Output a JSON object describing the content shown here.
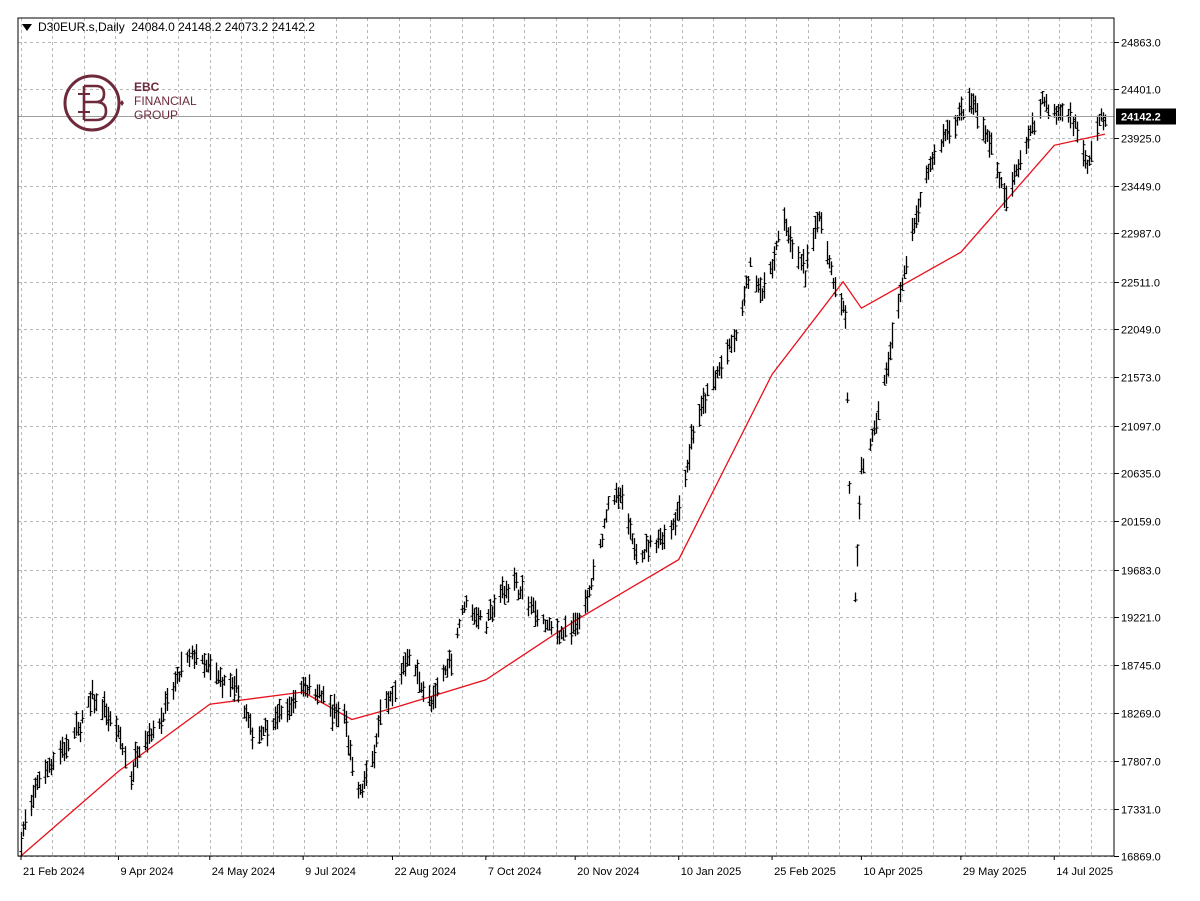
{
  "header": {
    "symbol_label": "D30EUR.s,Daily",
    "ohlc": "24084.0 24148.2 24073.2 24142.2"
  },
  "logo": {
    "line1": "EBC",
    "line2": "FINANCIAL",
    "line3": "GROUP"
  },
  "current_price_label": "24142.2",
  "colors": {
    "bars": "#000000",
    "moving_average": "#e8101a",
    "grid": "#b8b8b8",
    "price_line": "#a0a0a0",
    "logo": "#6e2a3b"
  },
  "chart_data": {
    "type": "line",
    "symbol": "D30EUR.s",
    "timeframe": "Daily",
    "ylim": [
      16869.0,
      25100.0
    ],
    "grid": true,
    "y_ticks": [
      "24863.0",
      "24401.0",
      "23925.0",
      "23449.0",
      "22987.0",
      "22511.0",
      "22049.0",
      "21573.0",
      "21097.0",
      "20635.0",
      "20159.0",
      "19683.0",
      "19221.0",
      "18745.0",
      "18269.0",
      "17807.0",
      "17331.0",
      "16869.0"
    ],
    "x_ticks": [
      "21 Feb 2024",
      "9 Apr 2024",
      "24 May 2024",
      "9 Jul 2024",
      "22 Aug 2024",
      "7 Oct 2024",
      "20 Nov 2024",
      "10 Jan 2025",
      "25 Feb 2025",
      "10 Apr 2025",
      "29 May 2025",
      "14 Jul 2025"
    ],
    "price_series": {
      "name": "D30EUR.s",
      "points": [
        [
          "21 Feb 2024",
          17050
        ],
        [
          "1 Mar 2024",
          17650
        ],
        [
          "12 Mar 2024",
          17900
        ],
        [
          "21 Mar 2024",
          18150
        ],
        [
          "27 Mar 2024",
          18450
        ],
        [
          "3 Apr 2024",
          18250
        ],
        [
          "9 Apr 2024",
          18050
        ],
        [
          "15 Apr 2024",
          17650
        ],
        [
          "19 Apr 2024",
          17950
        ],
        [
          "26 Apr 2024",
          18100
        ],
        [
          "3 May 2024",
          18350
        ],
        [
          "10 May 2024",
          18700
        ],
        [
          "16 May 2024",
          18850
        ],
        [
          "24 May 2024",
          18700
        ],
        [
          "31 May 2024",
          18550
        ],
        [
          "7 Jun 2024",
          18500
        ],
        [
          "14 Jun 2024",
          18050
        ],
        [
          "21 Jun 2024",
          18150
        ],
        [
          "28 Jun 2024",
          18250
        ],
        [
          "5 Jul 2024",
          18400
        ],
        [
          "9 Jul 2024",
          18550
        ],
        [
          "16 Jul 2024",
          18500
        ],
        [
          "22 Jul 2024",
          18300
        ],
        [
          "29 Jul 2024",
          18250
        ],
        [
          "2 Aug 2024",
          17700
        ],
        [
          "6 Aug 2024",
          17500
        ],
        [
          "12 Aug 2024",
          17800
        ],
        [
          "16 Aug 2024",
          18300
        ],
        [
          "22 Aug 2024",
          18450
        ],
        [
          "29 Aug 2024",
          18850
        ],
        [
          "4 Sep 2024",
          18600
        ],
        [
          "10 Sep 2024",
          18350
        ],
        [
          "16 Sep 2024",
          18650
        ],
        [
          "20 Sep 2024",
          18800
        ],
        [
          "26 Sep 2024",
          19350
        ],
        [
          "7 Oct 2024",
          19150
        ],
        [
          "14 Oct 2024",
          19450
        ],
        [
          "21 Oct 2024",
          19550
        ],
        [
          "28 Oct 2024",
          19350
        ],
        [
          "4 Nov 2024",
          19150
        ],
        [
          "11 Nov 2024",
          19050
        ],
        [
          "20 Nov 2024",
          19100
        ],
        [
          "26 Nov 2024",
          19350
        ],
        [
          "2 Dec 2024",
          19900
        ],
        [
          "6 Dec 2024",
          20350
        ],
        [
          "12 Dec 2024",
          20400
        ],
        [
          "18 Dec 2024",
          19950
        ],
        [
          "23 Dec 2024",
          19850
        ],
        [
          "30 Dec 2024",
          19950
        ],
        [
          "6 Jan 2025",
          20100
        ],
        [
          "10 Jan 2025",
          20300
        ],
        [
          "17 Jan 2025",
          21050
        ],
        [
          "24 Jan 2025",
          21400
        ],
        [
          "31 Jan 2025",
          21700
        ],
        [
          "7 Feb 2025",
          21950
        ],
        [
          "14 Feb 2025",
          22650
        ],
        [
          "20 Feb 2025",
          22400
        ],
        [
          "25 Feb 2025",
          22700
        ],
        [
          "3 Mar 2025",
          23150
        ],
        [
          "7 Mar 2025",
          22850
        ],
        [
          "13 Mar 2025",
          22600
        ],
        [
          "20 Mar 2025",
          23200
        ],
        [
          "27 Mar 2025",
          22550
        ],
        [
          "2 Apr 2025",
          22200
        ],
        [
          "4 Apr 2025",
          20500
        ],
        [
          "7 Apr 2025",
          19400
        ],
        [
          "10 Apr 2025",
          20650
        ],
        [
          "16 Apr 2025",
          21050
        ],
        [
          "23 Apr 2025",
          21700
        ],
        [
          "30 Apr 2025",
          22500
        ],
        [
          "7 May 2025",
          23150
        ],
        [
          "14 May 2025",
          23650
        ],
        [
          "21 May 2025",
          23950
        ],
        [
          "29 May 2025",
          24150
        ],
        [
          "4 Jun 2025",
          24250
        ],
        [
          "10 Jun 2025",
          24000
        ],
        [
          "16 Jun 2025",
          23600
        ],
        [
          "20 Jun 2025",
          23300
        ],
        [
          "26 Jun 2025",
          23650
        ],
        [
          "2 Jul 2025",
          23950
        ],
        [
          "8 Jul 2025",
          24300
        ],
        [
          "14 Jul 2025",
          24150
        ],
        [
          "18 Jul 2025",
          24200
        ],
        [
          "24 Jul 2025",
          24050
        ],
        [
          "30 Jul 2025",
          23600
        ],
        [
          "4 Aug 2025",
          24050
        ],
        [
          "8 Aug 2025",
          24142.2
        ]
      ]
    },
    "moving_average": {
      "points": [
        [
          "21 Feb 2024",
          16870
        ],
        [
          "9 Apr 2024",
          17700
        ],
        [
          "24 May 2024",
          18360
        ],
        [
          "9 Jul 2024",
          18480
        ],
        [
          "2 Aug 2024",
          18210
        ],
        [
          "22 Aug 2024",
          18320
        ],
        [
          "7 Oct 2024",
          18600
        ],
        [
          "20 Nov 2024",
          19180
        ],
        [
          "10 Jan 2025",
          19780
        ],
        [
          "25 Feb 2025",
          21600
        ],
        [
          "1 Apr 2025",
          22510
        ],
        [
          "10 Apr 2025",
          22250
        ],
        [
          "29 May 2025",
          22800
        ],
        [
          "14 Jul 2025",
          23850
        ],
        [
          "8 Aug 2025",
          23960
        ]
      ]
    }
  }
}
